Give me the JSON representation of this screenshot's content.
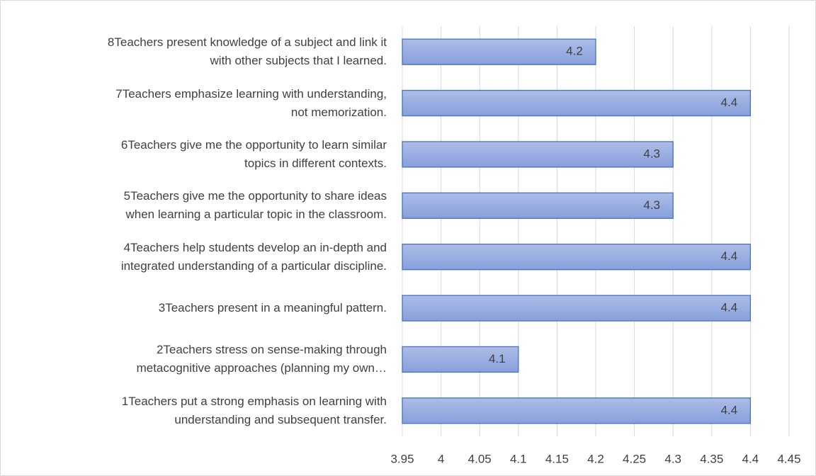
{
  "chart_data": {
    "type": "bar",
    "orientation": "horizontal",
    "categories": [
      "1Teachers put a strong emphasis on learning with\nunderstanding and subsequent transfer.",
      "2Teachers stress on sense-making through\nmetacognitive approaches  (planning my own…",
      "3Teachers present in a meaningful pattern.",
      "4Teachers help students develop an in-depth and\nintegrated understanding of a particular discipline.",
      "5Teachers give me the opportunity to share ideas\nwhen learning a particular topic in the classroom.",
      "6Teachers give me the opportunity to learn similar\ntopics in different contexts.",
      "7Teachers emphasize learning with understanding,\nnot memorization.",
      "8Teachers present knowledge of a subject and link it\nwith other subjects that I learned."
    ],
    "values": [
      4.4,
      4.1,
      4.4,
      4.4,
      4.3,
      4.3,
      4.4,
      4.2
    ],
    "color": "#4472c4",
    "xlim": [
      3.95,
      4.45
    ],
    "xticks": [
      3.95,
      4,
      4.05,
      4.1,
      4.15,
      4.2,
      4.25,
      4.3,
      4.35,
      4.4,
      4.45
    ],
    "grid": true
  }
}
